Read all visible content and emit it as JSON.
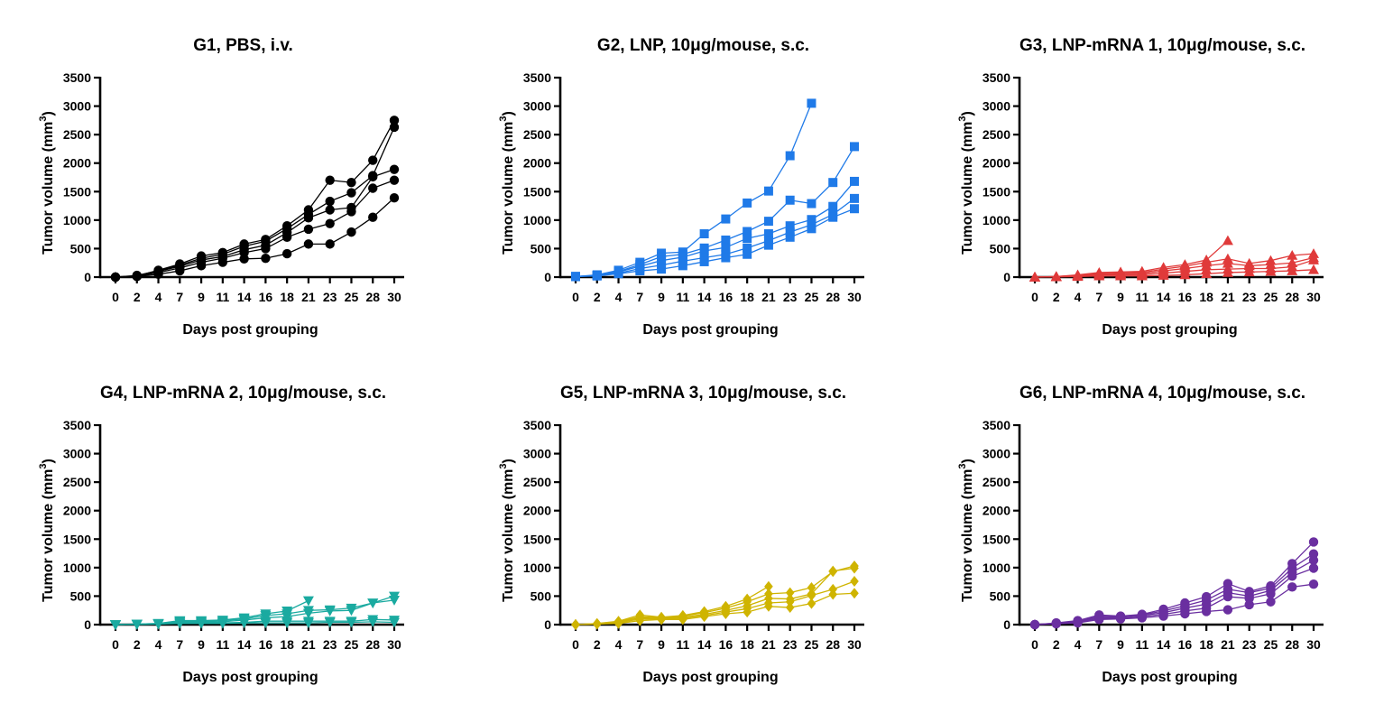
{
  "chart_data": [
    {
      "type": "line",
      "title": "G1, PBS, i.v.",
      "xlabel": "Days post grouping",
      "ylabel": "Tumor volume (mm",
      "ylabel_sup": "3",
      "ylabel_close": ")",
      "x": [
        0,
        2,
        4,
        7,
        9,
        11,
        14,
        16,
        18,
        21,
        23,
        25,
        28,
        30
      ],
      "ylim": [
        0,
        3500
      ],
      "yticks": [
        0,
        500,
        1000,
        1500,
        2000,
        2500,
        3000,
        3500
      ],
      "color": "#000000",
      "marker": "circle",
      "series": [
        {
          "values": [
            0,
            20,
            120,
            230,
            370,
            430,
            580,
            660,
            900,
            1180,
            1700,
            1660,
            2050,
            2750
          ]
        },
        {
          "values": [
            0,
            30,
            110,
            210,
            330,
            400,
            540,
            630,
            850,
            1100,
            1330,
            1480,
            1780,
            2630
          ]
        },
        {
          "values": [
            0,
            20,
            100,
            190,
            300,
            360,
            480,
            560,
            780,
            1040,
            1180,
            1220,
            1760,
            1890
          ]
        },
        {
          "values": [
            0,
            15,
            80,
            160,
            260,
            330,
            430,
            500,
            700,
            840,
            940,
            1150,
            1560,
            1700
          ]
        },
        {
          "values": [
            0,
            10,
            50,
            110,
            200,
            260,
            320,
            330,
            410,
            580,
            580,
            790,
            1050,
            1390
          ]
        }
      ]
    },
    {
      "type": "line",
      "title": "G2, LNP, 10μg/mouse, s.c.",
      "xlabel": "Days post grouping",
      "ylabel": "Tumor volume (mm",
      "ylabel_sup": "3",
      "ylabel_close": ")",
      "x": [
        0,
        2,
        4,
        7,
        9,
        11,
        14,
        16,
        18,
        21,
        23,
        25,
        28,
        30
      ],
      "ylim": [
        0,
        3500
      ],
      "yticks": [
        0,
        500,
        1000,
        1500,
        2000,
        2500,
        3000,
        3500
      ],
      "color": "#1f7ae8",
      "marker": "square",
      "series": [
        {
          "values": [
            10,
            40,
            120,
            260,
            420,
            440,
            760,
            1020,
            1300,
            1510,
            2130,
            3050,
            null,
            null
          ]
        },
        {
          "values": [
            10,
            30,
            100,
            220,
            360,
            400,
            510,
            650,
            800,
            980,
            1350,
            1290,
            1660,
            2290
          ]
        },
        {
          "values": [
            10,
            30,
            90,
            190,
            290,
            350,
            460,
            520,
            680,
            760,
            900,
            1010,
            1240,
            1680
          ]
        },
        {
          "values": [
            10,
            25,
            70,
            150,
            210,
            280,
            340,
            400,
            510,
            640,
            790,
            920,
            1100,
            1380
          ]
        },
        {
          "values": [
            10,
            20,
            60,
            110,
            140,
            200,
            270,
            340,
            400,
            560,
            700,
            850,
            1050,
            1200
          ]
        }
      ]
    },
    {
      "type": "line",
      "title": "G3, LNP-mRNA 1, 10μg/mouse, s.c.",
      "xlabel": "Days post grouping",
      "ylabel": "Tumor volume (mm",
      "ylabel_sup": "3",
      "ylabel_close": ")",
      "x": [
        0,
        2,
        4,
        7,
        9,
        11,
        14,
        16,
        18,
        21,
        23,
        25,
        28,
        30
      ],
      "ylim": [
        0,
        3500
      ],
      "yticks": [
        0,
        500,
        1000,
        1500,
        2000,
        2500,
        3000,
        3500
      ],
      "color": "#e03a3a",
      "marker": "triangle-up",
      "series": [
        {
          "values": [
            0,
            10,
            40,
            80,
            90,
            100,
            170,
            220,
            300,
            640,
            null,
            null,
            null,
            null
          ]
        },
        {
          "values": [
            0,
            10,
            30,
            60,
            70,
            80,
            140,
            190,
            260,
            320,
            240,
            290,
            380,
            410
          ]
        },
        {
          "values": [
            0,
            10,
            25,
            50,
            60,
            60,
            110,
            150,
            200,
            240,
            200,
            220,
            250,
            340
          ]
        },
        {
          "values": [
            0,
            5,
            20,
            40,
            40,
            40,
            70,
            100,
            130,
            140,
            150,
            150,
            180,
            300
          ]
        },
        {
          "values": [
            0,
            5,
            10,
            20,
            20,
            20,
            30,
            40,
            60,
            80,
            90,
            100,
            110,
            130
          ]
        }
      ]
    },
    {
      "type": "line",
      "title": "G4, LNP-mRNA 2, 10μg/mouse, s.c.",
      "xlabel": "Days post grouping",
      "ylabel": "Tumor volume (mm",
      "ylabel_sup": "3",
      "ylabel_close": ")",
      "x": [
        0,
        2,
        4,
        7,
        9,
        11,
        14,
        16,
        18,
        21,
        23,
        25,
        28,
        30
      ],
      "ylim": [
        0,
        3500
      ],
      "yticks": [
        0,
        500,
        1000,
        1500,
        2000,
        2500,
        3000,
        3500
      ],
      "color": "#1aaaa0",
      "marker": "triangle-down",
      "series": [
        {
          "values": [
            0,
            10,
            20,
            70,
            70,
            80,
            120,
            190,
            240,
            420,
            null,
            null,
            null,
            null
          ]
        },
        {
          "values": [
            0,
            10,
            20,
            60,
            60,
            70,
            100,
            160,
            190,
            250,
            260,
            290,
            380,
            500
          ]
        },
        {
          "values": [
            0,
            5,
            15,
            50,
            50,
            50,
            80,
            120,
            140,
            200,
            240,
            250,
            380,
            430
          ]
        },
        {
          "values": [
            0,
            5,
            10,
            30,
            30,
            30,
            40,
            60,
            60,
            60,
            60,
            60,
            90,
            80
          ]
        },
        {
          "values": [
            0,
            5,
            10,
            20,
            20,
            20,
            30,
            30,
            30,
            30,
            40,
            40,
            50,
            40
          ]
        }
      ]
    },
    {
      "type": "line",
      "title": "G5, LNP-mRNA 3, 10μg/mouse, s.c.",
      "xlabel": "Days post grouping",
      "ylabel": "Tumor volume (mm",
      "ylabel_sup": "3",
      "ylabel_close": ")",
      "x": [
        0,
        2,
        4,
        7,
        9,
        11,
        14,
        16,
        18,
        21,
        23,
        25,
        28,
        30
      ],
      "ylim": [
        0,
        3500
      ],
      "yticks": [
        0,
        500,
        1000,
        1500,
        2000,
        2500,
        3000,
        3500
      ],
      "color": "#cfb400",
      "marker": "diamond",
      "series": [
        {
          "values": [
            0,
            20,
            60,
            170,
            130,
            160,
            230,
            320,
            450,
            670,
            null,
            null,
            null,
            null
          ]
        },
        {
          "values": [
            0,
            15,
            50,
            140,
            120,
            150,
            210,
            290,
            400,
            540,
            560,
            650,
            930,
            1030
          ]
        },
        {
          "values": [
            0,
            15,
            40,
            120,
            110,
            130,
            180,
            250,
            330,
            460,
            450,
            540,
            940,
            990
          ]
        },
        {
          "values": [
            0,
            10,
            30,
            100,
            100,
            110,
            160,
            220,
            280,
            380,
            400,
            510,
            620,
            760
          ]
        },
        {
          "values": [
            0,
            10,
            20,
            70,
            90,
            90,
            140,
            190,
            220,
            320,
            300,
            370,
            530,
            550
          ]
        }
      ]
    },
    {
      "type": "line",
      "title": "G6, LNP-mRNA 4, 10μg/mouse, s.c.",
      "xlabel": "Days post grouping",
      "ylabel": "Tumor volume (mm",
      "ylabel_sup": "3",
      "ylabel_close": ")",
      "x": [
        0,
        2,
        4,
        7,
        9,
        11,
        14,
        16,
        18,
        21,
        23,
        25,
        28,
        30
      ],
      "ylim": [
        0,
        3500
      ],
      "yticks": [
        0,
        500,
        1000,
        1500,
        2000,
        2500,
        3000,
        3500
      ],
      "color": "#6a2fa0",
      "marker": "circle",
      "series": [
        {
          "values": [
            0,
            30,
            70,
            170,
            150,
            180,
            270,
            380,
            490,
            720,
            580,
            680,
            1070,
            1450
          ]
        },
        {
          "values": [
            0,
            25,
            60,
            150,
            140,
            170,
            240,
            330,
            430,
            620,
            560,
            640,
            990,
            1240
          ]
        },
        {
          "values": [
            0,
            20,
            50,
            130,
            130,
            160,
            210,
            290,
            360,
            560,
            500,
            600,
            920,
            1130
          ]
        },
        {
          "values": [
            0,
            20,
            40,
            110,
            110,
            140,
            180,
            240,
            290,
            490,
            460,
            540,
            850,
            990
          ]
        },
        {
          "values": [
            0,
            15,
            30,
            90,
            100,
            120,
            150,
            190,
            230,
            260,
            350,
            400,
            660,
            710
          ]
        }
      ]
    }
  ]
}
